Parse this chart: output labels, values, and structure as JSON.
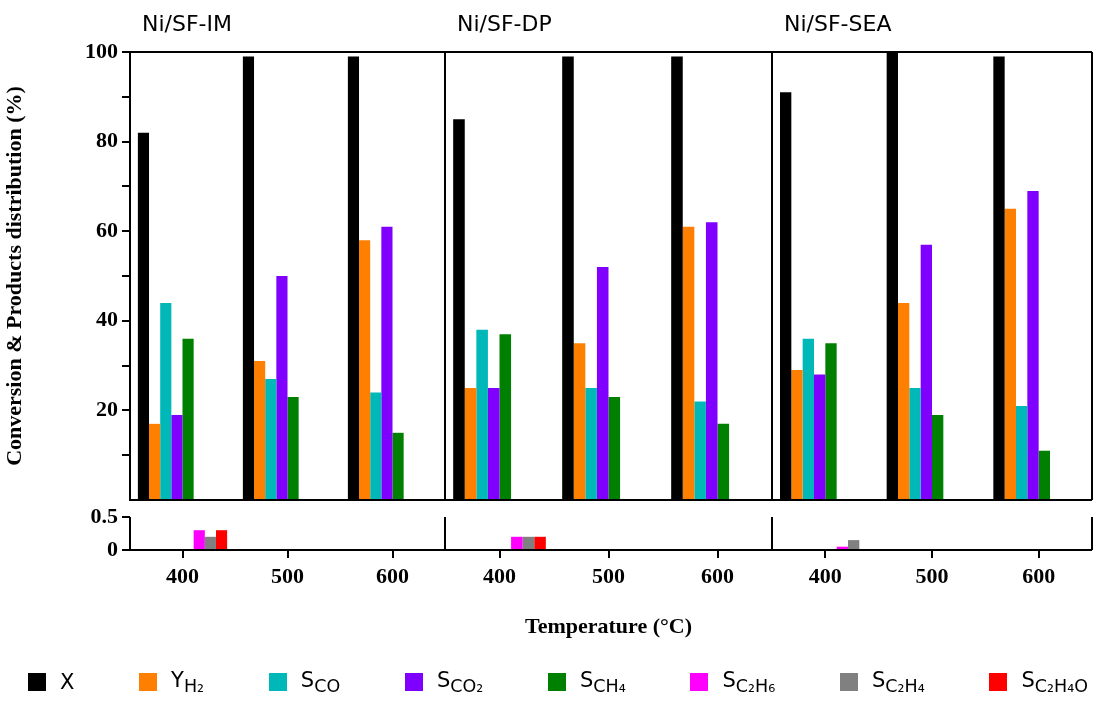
{
  "chart_data": [
    {
      "type": "bar",
      "title": "Ni/SF-IM",
      "ylabel": "Conversion & Products distribution (%)",
      "categories": [
        "400",
        "500",
        "600"
      ],
      "ylim": [
        0,
        100
      ],
      "yticks": [
        {
          "value": 10,
          "label": null
        },
        20,
        {
          "value": 30,
          "label": null
        },
        40,
        {
          "value": 50,
          "label": null
        },
        60,
        {
          "value": 70,
          "label": null
        },
        80,
        {
          "value": 90,
          "label": null
        },
        100
      ],
      "tick_labels": "y",
      "legend": "bottom",
      "series": [
        {
          "name": "X",
          "color": "#000000",
          "values": [
            82,
            99,
            99
          ]
        },
        {
          "name": "Y$_{H₂}$",
          "color": "#ff8000",
          "values": [
            17,
            31,
            58
          ]
        },
        {
          "name": "S$_{CO}$",
          "color": "#00b8b8",
          "values": [
            44,
            27,
            24
          ]
        },
        {
          "name": "S$_{CO₂}$",
          "color": "#8000ff",
          "values": [
            19,
            50,
            61
          ]
        },
        {
          "name": "S$_{CH₄}$",
          "color": "#008000",
          "values": [
            36,
            23,
            15
          ]
        },
        {
          "name": "S$_{C₂H₆}$",
          "color": "#ff00ff",
          "values": [
            null,
            null,
            null
          ]
        },
        {
          "name": "S$_{C₂H₄}$",
          "color": "#808080",
          "values": [
            null,
            null,
            null
          ]
        },
        {
          "name": "S$_{C₂H₄O}$",
          "color": "#ff0000",
          "values": [
            null,
            null,
            null
          ]
        }
      ]
    },
    {
      "type": "bar",
      "title": "Ni/SF-DP",
      "categories": [
        "400",
        "500",
        "600"
      ],
      "ylim": [
        0,
        100
      ],
      "tick_labels": false,
      "series": [
        {
          "color": "#000000",
          "values": [
            85,
            99,
            99
          ]
        },
        {
          "color": "#ff8000",
          "values": [
            25,
            35,
            61
          ]
        },
        {
          "color": "#00b8b8",
          "values": [
            38,
            25,
            22
          ]
        },
        {
          "color": "#8000ff",
          "values": [
            25,
            52,
            62
          ]
        },
        {
          "color": "#008000",
          "values": [
            37,
            23,
            17
          ]
        },
        {
          "color": "#ff00ff",
          "values": [
            null,
            null,
            null
          ]
        },
        {
          "color": "#808080",
          "values": [
            null,
            null,
            null
          ]
        },
        {
          "color": "#ff0000",
          "values": [
            null,
            null,
            null
          ]
        }
      ]
    },
    {
      "type": "bar",
      "title": "Ni/SF-SEA",
      "categories": [
        "400",
        "500",
        "600"
      ],
      "ylim": [
        0,
        100
      ],
      "tick_labels": false,
      "series": [
        {
          "color": "#000000",
          "values": [
            91,
            100,
            99
          ]
        },
        {
          "color": "#ff8000",
          "values": [
            29,
            44,
            65
          ]
        },
        {
          "color": "#00b8b8",
          "values": [
            36,
            25,
            21
          ]
        },
        {
          "color": "#8000ff",
          "values": [
            28,
            57,
            69
          ]
        },
        {
          "color": "#008000",
          "values": [
            35,
            19,
            11
          ]
        },
        {
          "color": "#ff00ff",
          "values": [
            null,
            null,
            null
          ]
        },
        {
          "color": "#808080",
          "values": [
            null,
            null,
            null
          ]
        },
        {
          "color": "#ff0000",
          "values": [
            null,
            null,
            null
          ]
        }
      ]
    },
    {
      "type": "bar",
      "categories": [
        "400",
        "500",
        "600"
      ],
      "ylim": [
        0,
        0.5
      ],
      "yticks": [
        0,
        0.5
      ],
      "series": [
        {
          "color": "#000000",
          "values": [
            null,
            null,
            null
          ]
        },
        {
          "color": "#ff8000",
          "values": [
            null,
            null,
            null
          ]
        },
        {
          "color": "#00b8b8",
          "values": [
            null,
            null,
            null
          ]
        },
        {
          "color": "#8000ff",
          "values": [
            null,
            null,
            null
          ]
        },
        {
          "color": "#008000",
          "values": [
            null,
            null,
            null
          ]
        },
        {
          "color": "#ff00ff",
          "values": [
            0.3,
            null,
            null
          ]
        },
        {
          "color": "#808080",
          "values": [
            0.2,
            null,
            null
          ]
        },
        {
          "color": "#ff0000",
          "values": [
            0.3,
            null,
            null
          ]
        }
      ]
    },
    {
      "type": "bar",
      "xlabel": "Temperature (°C)",
      "categories": [
        "400",
        "500",
        "600"
      ],
      "ylim": [
        0,
        0.5
      ],
      "tick_labels": "x",
      "series": [
        {
          "color": "#000000",
          "values": [
            null,
            null,
            null
          ]
        },
        {
          "color": "#ff8000",
          "values": [
            null,
            null,
            null
          ]
        },
        {
          "color": "#00b8b8",
          "values": [
            null,
            null,
            null
          ]
        },
        {
          "color": "#8000ff",
          "values": [
            null,
            null,
            null
          ]
        },
        {
          "color": "#008000",
          "values": [
            null,
            null,
            null
          ]
        },
        {
          "color": "#ff00ff",
          "values": [
            0.2,
            null,
            null
          ]
        },
        {
          "color": "#808080",
          "values": [
            0.2,
            null,
            null
          ]
        },
        {
          "color": "#ff0000",
          "values": [
            0.2,
            null,
            null
          ]
        }
      ]
    },
    {
      "type": "bar",
      "categories": [
        "400",
        "500",
        "600"
      ],
      "ylim": [
        0,
        0.5
      ],
      "tick_labels": "x",
      "series": [
        {
          "color": "#000000",
          "values": [
            null,
            null,
            null
          ]
        },
        {
          "color": "#ff8000",
          "values": [
            null,
            null,
            null
          ]
        },
        {
          "color": "#00b8b8",
          "values": [
            null,
            null,
            null
          ]
        },
        {
          "color": "#8000ff",
          "values": [
            null,
            null,
            null
          ]
        },
        {
          "color": "#008000",
          "values": [
            null,
            null,
            null
          ]
        },
        {
          "color": "#ff00ff",
          "values": [
            0.05,
            null,
            null
          ]
        },
        {
          "color": "#808080",
          "values": [
            0.15,
            null,
            null
          ]
        },
        {
          "color": "#ff0000",
          "values": [
            null,
            null,
            null
          ]
        }
      ]
    }
  ]
}
